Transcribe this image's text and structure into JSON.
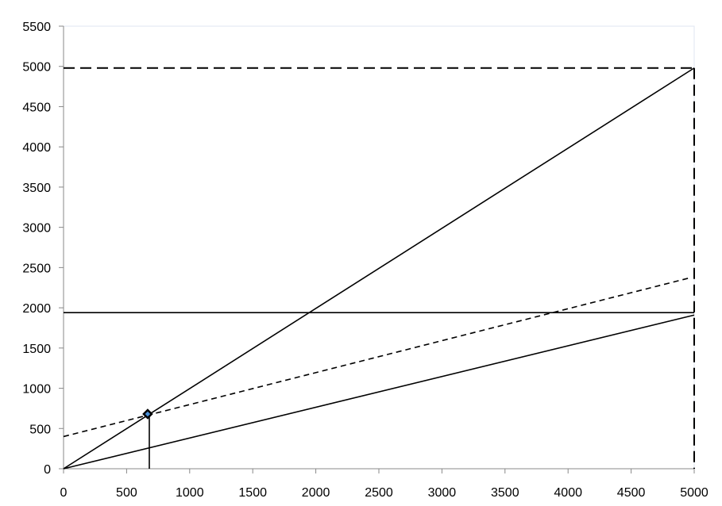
{
  "chart_data": {
    "type": "line",
    "title": "",
    "xlabel": "",
    "ylabel": "",
    "xlim": [
      0,
      5000
    ],
    "ylim": [
      0,
      5500
    ],
    "x_ticks": [
      "0",
      "500",
      "1000",
      "1500",
      "2000",
      "2500",
      "3000",
      "3500",
      "4000",
      "4500",
      "5000"
    ],
    "y_ticks": [
      "0",
      "500",
      "1000",
      "1500",
      "2000",
      "2500",
      "3000",
      "3500",
      "4000",
      "4500",
      "5000",
      "5500"
    ],
    "grid": false,
    "legend": "none",
    "series": [
      {
        "style": "solid",
        "x": [
          0,
          5000
        ],
        "y": [
          0,
          4980
        ]
      },
      {
        "style": "solid",
        "x": [
          0,
          5000
        ],
        "y": [
          0,
          1910
        ]
      },
      {
        "style": "solid",
        "x": [
          0,
          5000
        ],
        "y": [
          1940,
          1940
        ]
      },
      {
        "style": "dashed-short",
        "x": [
          0,
          4960
        ],
        "y": [
          400,
          2370
        ]
      },
      {
        "style": "dashed-long",
        "x": [
          0,
          5000
        ],
        "y": [
          4980,
          4980
        ]
      },
      {
        "style": "dashed-long",
        "x": [
          5000,
          5000
        ],
        "y": [
          4980,
          0
        ]
      },
      {
        "style": "solid",
        "x": [
          680,
          680
        ],
        "y": [
          680,
          0
        ]
      }
    ],
    "points": [
      {
        "x": 667,
        "y": 680,
        "marker": "diamond",
        "color": "#4a90d9"
      }
    ]
  }
}
